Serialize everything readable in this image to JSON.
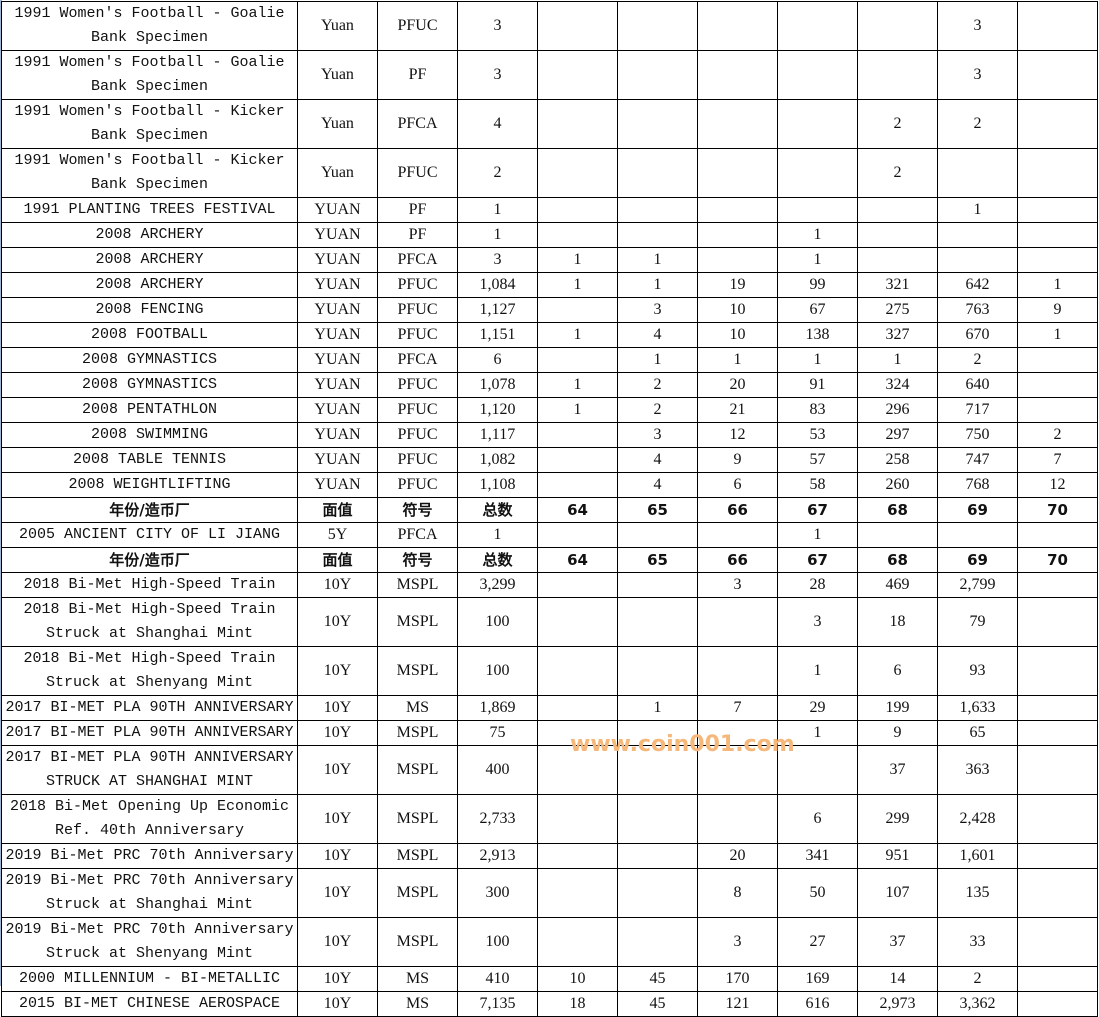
{
  "header": [
    "年份/造币厂",
    "面值",
    "符号",
    "总数",
    "64",
    "65",
    "66",
    "67",
    "68",
    "69",
    "70"
  ],
  "rows": [
    {
      "t": "d",
      "c": [
        "1991 Women's Football - Goalie Bank Specimen",
        "Yuan",
        "PFUC",
        "3",
        "",
        "",
        "",
        "",
        "",
        "3",
        ""
      ]
    },
    {
      "t": "d",
      "c": [
        "1991 Women's Football - Goalie Bank Specimen",
        "Yuan",
        "PF",
        "3",
        "",
        "",
        "",
        "",
        "",
        "3",
        ""
      ]
    },
    {
      "t": "d",
      "c": [
        "1991 Women's Football - Kicker Bank Specimen",
        "Yuan",
        "PFCA",
        "4",
        "",
        "",
        "",
        "",
        "2",
        "2",
        ""
      ]
    },
    {
      "t": "d",
      "c": [
        "1991 Women's Football - Kicker Bank Specimen",
        "Yuan",
        "PFUC",
        "2",
        "",
        "",
        "",
        "",
        "2",
        "",
        ""
      ]
    },
    {
      "t": "s",
      "c": [
        "1991 PLANTING TREES FESTIVAL",
        "YUAN",
        "PF",
        "1",
        "",
        "",
        "",
        "",
        "",
        "1",
        ""
      ]
    },
    {
      "t": "s",
      "c": [
        "2008 ARCHERY",
        "YUAN",
        "PF",
        "1",
        "",
        "",
        "",
        "1",
        "",
        "",
        ""
      ]
    },
    {
      "t": "s",
      "c": [
        "2008 ARCHERY",
        "YUAN",
        "PFCA",
        "3",
        "1",
        "1",
        "",
        "1",
        "",
        "",
        ""
      ]
    },
    {
      "t": "s",
      "c": [
        "2008 ARCHERY",
        "YUAN",
        "PFUC",
        "1,084",
        "1",
        "1",
        "19",
        "99",
        "321",
        "642",
        "1"
      ]
    },
    {
      "t": "s",
      "c": [
        "2008 FENCING",
        "YUAN",
        "PFUC",
        "1,127",
        "",
        "3",
        "10",
        "67",
        "275",
        "763",
        "9"
      ]
    },
    {
      "t": "s",
      "c": [
        "2008 FOOTBALL",
        "YUAN",
        "PFUC",
        "1,151",
        "1",
        "4",
        "10",
        "138",
        "327",
        "670",
        "1"
      ]
    },
    {
      "t": "s",
      "c": [
        "2008 GYMNASTICS",
        "YUAN",
        "PFCA",
        "6",
        "",
        "1",
        "1",
        "1",
        "1",
        "2",
        ""
      ]
    },
    {
      "t": "s",
      "c": [
        "2008 GYMNASTICS",
        "YUAN",
        "PFUC",
        "1,078",
        "1",
        "2",
        "20",
        "91",
        "324",
        "640",
        ""
      ]
    },
    {
      "t": "s",
      "c": [
        "2008 PENTATHLON",
        "YUAN",
        "PFUC",
        "1,120",
        "1",
        "2",
        "21",
        "83",
        "296",
        "717",
        ""
      ]
    },
    {
      "t": "s",
      "c": [
        "2008 SWIMMING",
        "YUAN",
        "PFUC",
        "1,117",
        "",
        "3",
        "12",
        "53",
        "297",
        "750",
        "2"
      ]
    },
    {
      "t": "s",
      "c": [
        "2008 TABLE TENNIS",
        "YUAN",
        "PFUC",
        "1,082",
        "",
        "4",
        "9",
        "57",
        "258",
        "747",
        "7"
      ]
    },
    {
      "t": "s",
      "c": [
        "2008 WEIGHTLIFTING",
        "YUAN",
        "PFUC",
        "1,108",
        "",
        "4",
        "6",
        "58",
        "260",
        "768",
        "12"
      ]
    },
    {
      "t": "h"
    },
    {
      "t": "s",
      "c": [
        "2005 ANCIENT CITY OF LI JIANG",
        "5Y",
        "PFCA",
        "1",
        "",
        "",
        "",
        "1",
        "",
        "",
        ""
      ]
    },
    {
      "t": "h"
    },
    {
      "t": "s",
      "c": [
        "2018 Bi-Met High-Speed Train",
        "10Y",
        "MSPL",
        "3,299",
        "",
        "",
        "3",
        "28",
        "469",
        "2,799",
        ""
      ]
    },
    {
      "t": "d",
      "c": [
        "2018 Bi-Met High-Speed Train Struck at Shanghai Mint",
        "10Y",
        "MSPL",
        "100",
        "",
        "",
        "",
        "3",
        "18",
        "79",
        ""
      ]
    },
    {
      "t": "d",
      "c": [
        "2018 Bi-Met High-Speed Train Struck at Shenyang Mint",
        "10Y",
        "MSPL",
        "100",
        "",
        "",
        "",
        "1",
        "6",
        "93",
        ""
      ]
    },
    {
      "t": "s",
      "c": [
        "2017 BI-MET PLA 90TH ANNIVERSARY",
        "10Y",
        "MS",
        "1,869",
        "",
        "1",
        "7",
        "29",
        "199",
        "1,633",
        ""
      ]
    },
    {
      "t": "s",
      "c": [
        "2017 BI-MET PLA 90TH ANNIVERSARY",
        "10Y",
        "MSPL",
        "75",
        "",
        "",
        "",
        "1",
        "9",
        "65",
        ""
      ]
    },
    {
      "t": "d",
      "c": [
        "2017 BI-MET PLA 90TH ANNIVERSARY STRUCK AT SHANGHAI MINT",
        "10Y",
        "MSPL",
        "400",
        "",
        "",
        "",
        "",
        "37",
        "363",
        ""
      ]
    },
    {
      "t": "d",
      "c": [
        "2018 Bi-Met Opening Up Economic Ref. 40th Anniversary",
        "10Y",
        "MSPL",
        "2,733",
        "",
        "",
        "",
        "6",
        "299",
        "2,428",
        ""
      ]
    },
    {
      "t": "s",
      "c": [
        "2019 Bi-Met PRC 70th Anniversary",
        "10Y",
        "MSPL",
        "2,913",
        "",
        "",
        "20",
        "341",
        "951",
        "1,601",
        ""
      ]
    },
    {
      "t": "d",
      "c": [
        "2019 Bi-Met PRC 70th Anniversary Struck at Shanghai Mint",
        "10Y",
        "MSPL",
        "300",
        "",
        "",
        "8",
        "50",
        "107",
        "135",
        ""
      ]
    },
    {
      "t": "d",
      "c": [
        "2019 Bi-Met PRC 70th Anniversary Struck at Shenyang Mint",
        "10Y",
        "MSPL",
        "100",
        "",
        "",
        "3",
        "27",
        "37",
        "33",
        ""
      ]
    },
    {
      "t": "s",
      "c": [
        "2000 MILLENNIUM - BI-METALLIC",
        "10Y",
        "MS",
        "410",
        "10",
        "45",
        "170",
        "169",
        "14",
        "2",
        ""
      ]
    },
    {
      "t": "s",
      "c": [
        "2015 BI-MET CHINESE AEROSPACE",
        "10Y",
        "MS",
        "7,135",
        "18",
        "45",
        "121",
        "616",
        "2,973",
        "3,362",
        ""
      ]
    }
  ],
  "watermark": "www.coin001.com"
}
